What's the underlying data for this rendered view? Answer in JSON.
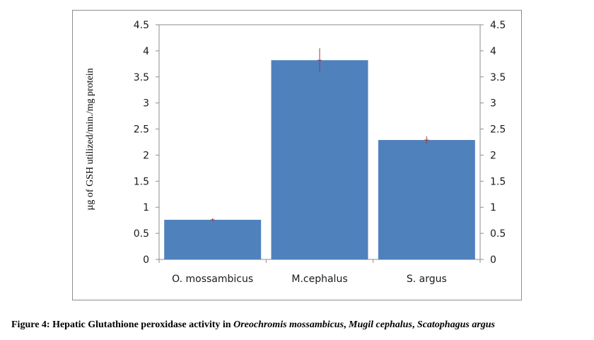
{
  "chart_data": {
    "type": "bar",
    "categories": [
      "O. mossambicus",
      "M.cephalus",
      "S. argus"
    ],
    "values": [
      0.76,
      3.82,
      2.29
    ],
    "errors": [
      0.03,
      0.23,
      0.07
    ],
    "ylabel": "µg of GSH utilized/min./mg protein",
    "ylim": [
      0,
      4.5
    ],
    "yticks": [
      "0",
      "0.5",
      "1",
      "1.5",
      "2",
      "2.5",
      "3",
      "3.5",
      "4",
      "4.5"
    ],
    "secondary_y_axis": true,
    "grid": false,
    "legend": "none",
    "bar_color": "#4f81bd",
    "error_bar_color": "#9b3a4a"
  },
  "caption": {
    "prefix": "Figure 4: Hepatic Glutathione peroxidase activity in ",
    "species_1": "Oreochromis mossambicus",
    "sep_1": ", ",
    "species_2": "Mugil cephalus",
    "sep_2": ", ",
    "species_3": "Scatophagus argus"
  }
}
